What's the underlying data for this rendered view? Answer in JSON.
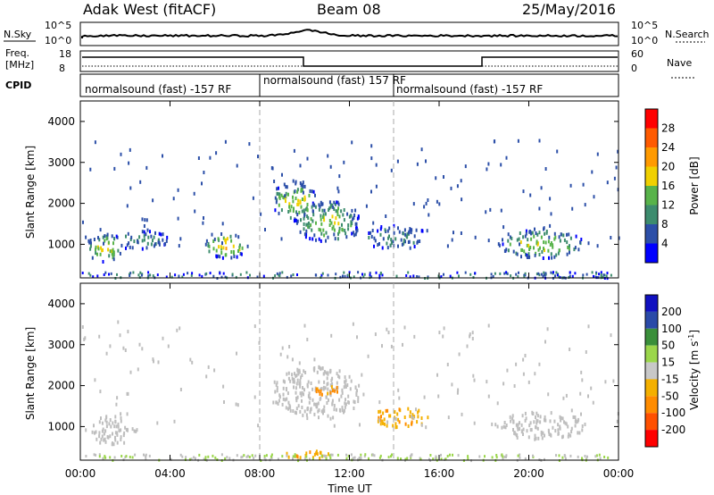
{
  "header": {
    "station": "Adak West (fitACF)",
    "beam": "Beam 08",
    "date": "25/May/2016"
  },
  "strips": {
    "nsky_label": "N.Sky",
    "nsky_ticks": [
      "10^5",
      "10^0"
    ],
    "nsearch_label": "N.Search",
    "nsearch_ticks": [
      "10^5",
      "10^0"
    ],
    "freq_label_line1": "Freq.",
    "freq_label_line2": "[MHz]",
    "freq_ticks": [
      "18",
      "8"
    ],
    "nave_label": "Nave",
    "nave_ticks": [
      "60",
      "0"
    ],
    "cpid_label": "CPID",
    "cpid_segments": [
      {
        "label": "normalsound (fast) -157 RF",
        "start": "00:00"
      },
      {
        "label": "normalsound (fast) 157 RF",
        "start": "08:00"
      },
      {
        "label": "normalsound (fast) -157 RF",
        "start": "14:00"
      }
    ]
  },
  "colors": {
    "power": [
      "#0000ff",
      "#2c4fa8",
      "#3d8c6e",
      "#58b34a",
      "#f0d000",
      "#ff9a00",
      "#ff5a00",
      "#ff0000"
    ],
    "velocity": [
      "#ff0000",
      "#ff5000",
      "#ff8c00",
      "#f4b000",
      "#c8c8c8",
      "#9bd64b",
      "#3a8f3a",
      "#2a4aa8",
      "#1010c0"
    ],
    "ground_scatter": "#bebebe"
  },
  "chart_data": [
    {
      "type": "heatmap",
      "title": "Power",
      "xlabel": "Time UT",
      "ylabel": "Slant Range [km]",
      "x_ticks": [
        "00:00",
        "04:00",
        "08:00",
        "12:00",
        "16:00",
        "20:00",
        "00:00"
      ],
      "y_ticks": [
        1000,
        2000,
        3000,
        4000
      ],
      "xlim_hours": [
        0,
        24
      ],
      "ylim_km": [
        180,
        4500
      ],
      "colorbar_label": "Power [dB]",
      "colorbar_ticks": [
        4,
        8,
        12,
        16,
        20,
        24,
        28
      ],
      "colorbar_range": [
        0,
        32
      ],
      "dashed_lines_hours": [
        8,
        14
      ],
      "regions": [
        {
          "t0": 0.2,
          "t1": 2.0,
          "r0": 600,
          "r1": 1300,
          "level": 18
        },
        {
          "t0": 1.5,
          "t1": 4.0,
          "r0": 900,
          "r1": 1400,
          "level": 10
        },
        {
          "t0": 5.5,
          "t1": 7.5,
          "r0": 700,
          "r1": 1300,
          "level": 20
        },
        {
          "t0": 8.5,
          "t1": 10.5,
          "r0": 1600,
          "r1": 2600,
          "level": 18
        },
        {
          "t0": 9.5,
          "t1": 12.5,
          "r0": 1100,
          "r1": 2100,
          "level": 16
        },
        {
          "t0": 12.5,
          "t1": 15.5,
          "r0": 900,
          "r1": 1500,
          "level": 10
        },
        {
          "t0": 18.5,
          "t1": 22.5,
          "r0": 700,
          "r1": 1400,
          "level": 16
        }
      ]
    },
    {
      "type": "heatmap",
      "title": "Velocity",
      "xlabel": "Time UT",
      "ylabel": "Slant Range [km]",
      "x_ticks": [
        "00:00",
        "04:00",
        "08:00",
        "12:00",
        "16:00",
        "20:00",
        "00:00"
      ],
      "y_ticks": [
        1000,
        2000,
        3000,
        4000
      ],
      "xlim_hours": [
        0,
        24
      ],
      "ylim_km": [
        180,
        4500
      ],
      "colorbar_label": "Velocity [m s^-1]",
      "colorbar_unit": "m s",
      "colorbar_unit_exp": "-1",
      "colorbar_ticks": [
        "200",
        "100",
        "50",
        "15",
        "-15",
        "-50",
        "-100",
        "-200"
      ],
      "dashed_lines_hours": [
        8,
        14
      ],
      "regions": [
        {
          "t0": 0.2,
          "t1": 2.5,
          "r0": 600,
          "r1": 1300,
          "velocity": 0
        },
        {
          "t0": 8.5,
          "t1": 12.5,
          "r0": 1200,
          "r1": 2500,
          "velocity": 0
        },
        {
          "t0": 10.3,
          "t1": 11.5,
          "r0": 1800,
          "r1": 2100,
          "velocity": -60
        },
        {
          "t0": 13.0,
          "t1": 15.5,
          "r0": 1000,
          "r1": 1500,
          "velocity": -40
        },
        {
          "t0": 9.0,
          "t1": 11.5,
          "r0": 250,
          "r1": 450,
          "velocity": -50
        },
        {
          "t0": 18.5,
          "t1": 22.5,
          "r0": 700,
          "r1": 1400,
          "velocity": 0
        }
      ]
    }
  ]
}
